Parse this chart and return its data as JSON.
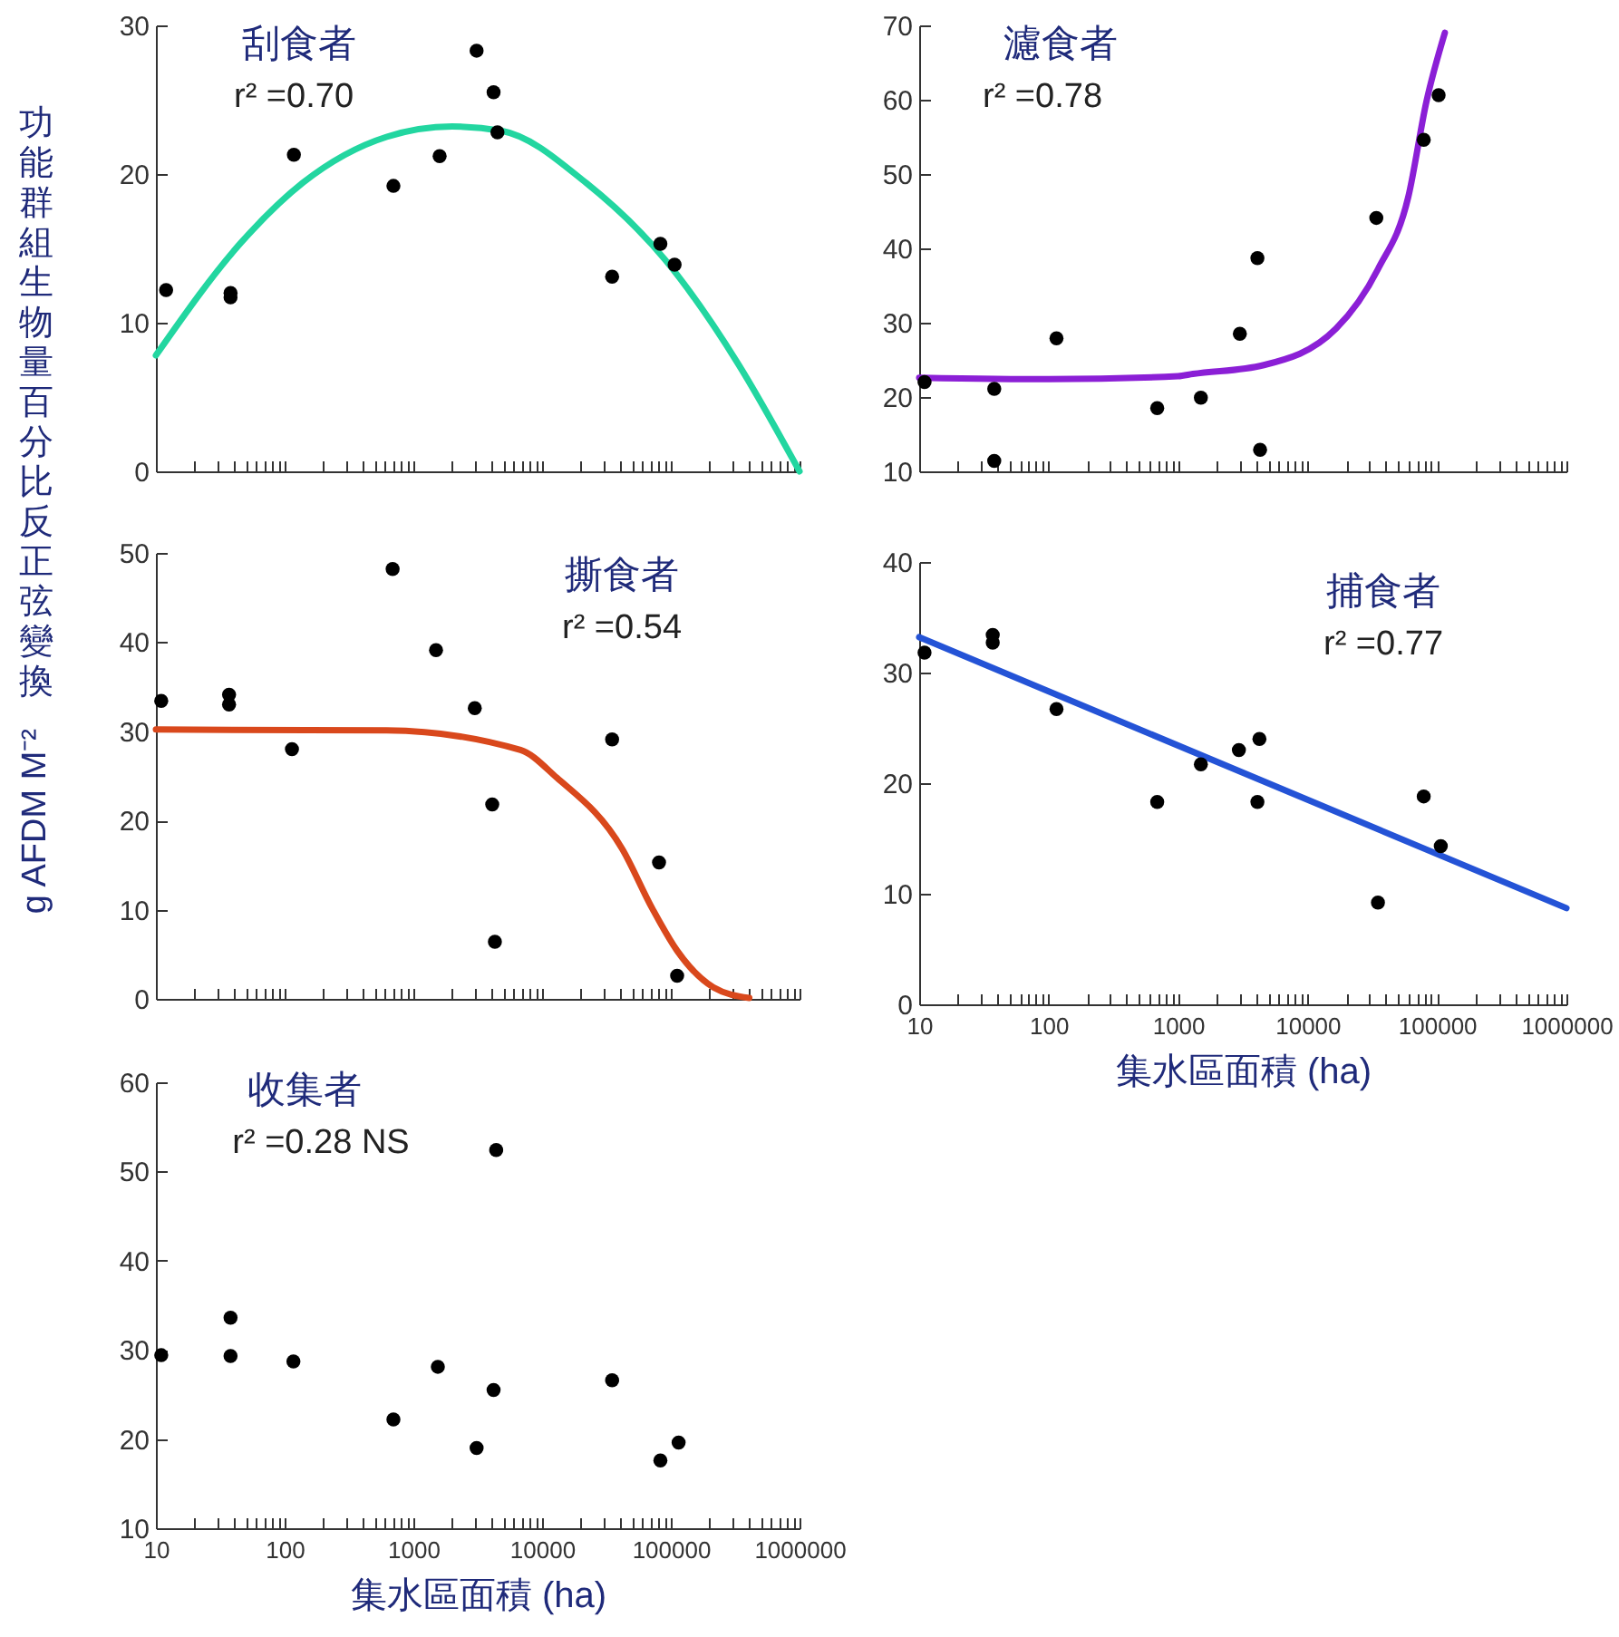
{
  "chart_data": [
    {
      "type": "scatter",
      "title": "刮食者",
      "ylabel": "功能群組生物量百分比反正弦變換 g AFDM M⁻²",
      "annotations": [
        "r² =0.70"
      ],
      "log": "x",
      "grid": false,
      "line_style": "solid",
      "tick_labels": "y",
      "xlim": [
        10,
        1000000
      ],
      "ylim": [
        0,
        30
      ],
      "yticks": [
        0,
        10,
        20,
        30
      ],
      "xticks": [
        10,
        {
          "value": 20,
          "label": null
        },
        {
          "value": 30,
          "label": null
        },
        {
          "value": 40,
          "label": null
        },
        {
          "value": 50,
          "label": null
        },
        {
          "value": 60,
          "label": null
        },
        {
          "value": 70,
          "label": null
        },
        {
          "value": 80,
          "label": null
        },
        {
          "value": 90,
          "label": null
        },
        100,
        {
          "value": 200,
          "label": null
        },
        {
          "value": 300,
          "label": null
        },
        {
          "value": 400,
          "label": null
        },
        {
          "value": 500,
          "label": null
        },
        {
          "value": 600,
          "label": null
        },
        {
          "value": 700,
          "label": null
        },
        {
          "value": 800,
          "label": null
        },
        {
          "value": 900,
          "label": null
        },
        1000,
        {
          "value": 2000,
          "label": null
        },
        {
          "value": 3000,
          "label": null
        },
        {
          "value": 4000,
          "label": null
        },
        {
          "value": 5000,
          "label": null
        },
        {
          "value": 6000,
          "label": null
        },
        {
          "value": 7000,
          "label": null
        },
        {
          "value": 8000,
          "label": null
        },
        {
          "value": 9000,
          "label": null
        },
        10000,
        {
          "value": 20000,
          "label": null
        },
        {
          "value": 30000,
          "label": null
        },
        {
          "value": 40000,
          "label": null
        },
        {
          "value": 50000,
          "label": null
        },
        {
          "value": 60000,
          "label": null
        },
        {
          "value": 70000,
          "label": null
        },
        {
          "value": 80000,
          "label": null
        },
        {
          "value": 90000,
          "label": null
        },
        100000,
        {
          "value": 200000,
          "label": null
        },
        {
          "value": 300000,
          "label": null
        },
        {
          "value": 400000,
          "label": null
        },
        {
          "value": 500000,
          "label": null
        },
        {
          "value": 600000,
          "label": null
        },
        {
          "value": 700000,
          "label": null
        },
        {
          "value": 800000,
          "label": null
        },
        {
          "value": 900000,
          "label": null
        },
        1000000
      ],
      "series": [
        {
          "type": "scatter",
          "marker": "circle",
          "color": "#000000",
          "x": [
            12,
            38,
            38,
            118,
            700,
            1600,
            3100,
            4200,
            4500,
            35000,
            83000,
            107000
          ],
          "values": [
            12.2,
            12.0,
            11.7,
            21.3,
            19.2,
            21.2,
            28.3,
            25.5,
            22.8,
            13.1,
            15.3,
            13.9
          ]
        },
        {
          "type": "line",
          "marker": "none",
          "color": "#22d6a0",
          "x": [
            10,
            46,
            138,
            620,
            2000,
            4900,
            22000,
            91000,
            330000,
            1000000
          ],
          "values": [
            7.8,
            15.4,
            19.4,
            22.5,
            23.2,
            22.9,
            19.4,
            14.2,
            7.3,
            0
          ]
        }
      ]
    },
    {
      "type": "scatter",
      "title": "濾食者",
      "annotations": [
        "r² =0.78"
      ],
      "log": "x",
      "grid": false,
      "line_style": "solid",
      "tick_labels": "y",
      "xlim": [
        10,
        1000000
      ],
      "ylim": [
        10,
        70
      ],
      "yticks": [
        10,
        20,
        30,
        40,
        50,
        60,
        70
      ],
      "xticks": [
        10,
        {
          "value": 20,
          "label": null
        },
        {
          "value": 30,
          "label": null
        },
        {
          "value": 40,
          "label": null
        },
        {
          "value": 50,
          "label": null
        },
        {
          "value": 60,
          "label": null
        },
        {
          "value": 70,
          "label": null
        },
        {
          "value": 80,
          "label": null
        },
        {
          "value": 90,
          "label": null
        },
        100,
        {
          "value": 200,
          "label": null
        },
        {
          "value": 300,
          "label": null
        },
        {
          "value": 400,
          "label": null
        },
        {
          "value": 500,
          "label": null
        },
        {
          "value": 600,
          "label": null
        },
        {
          "value": 700,
          "label": null
        },
        {
          "value": 800,
          "label": null
        },
        {
          "value": 900,
          "label": null
        },
        1000,
        {
          "value": 2000,
          "label": null
        },
        {
          "value": 3000,
          "label": null
        },
        {
          "value": 4000,
          "label": null
        },
        {
          "value": 5000,
          "label": null
        },
        {
          "value": 6000,
          "label": null
        },
        {
          "value": 7000,
          "label": null
        },
        {
          "value": 8000,
          "label": null
        },
        {
          "value": 9000,
          "label": null
        },
        10000,
        {
          "value": 20000,
          "label": null
        },
        {
          "value": 30000,
          "label": null
        },
        {
          "value": 40000,
          "label": null
        },
        {
          "value": 50000,
          "label": null
        },
        {
          "value": 60000,
          "label": null
        },
        {
          "value": 70000,
          "label": null
        },
        {
          "value": 80000,
          "label": null
        },
        {
          "value": 90000,
          "label": null
        },
        100000,
        {
          "value": 200000,
          "label": null
        },
        {
          "value": 300000,
          "label": null
        },
        {
          "value": 400000,
          "label": null
        },
        {
          "value": 500000,
          "label": null
        },
        {
          "value": 600000,
          "label": null
        },
        {
          "value": 700000,
          "label": null
        },
        {
          "value": 800000,
          "label": null
        },
        {
          "value": 900000,
          "label": null
        },
        1000000
      ],
      "series": [
        {
          "type": "scatter",
          "marker": "circle",
          "color": "#000000",
          "x": [
            11,
            38,
            38,
            115,
            690,
            1500,
            3000,
            4100,
            4300,
            34000,
            79000,
            103000
          ],
          "values": [
            22,
            21.1,
            11.4,
            27.9,
            18.5,
            19.9,
            28.5,
            38.7,
            12.9,
            44.1,
            54.6,
            60.6
          ]
        },
        {
          "type": "line",
          "marker": "none",
          "color": "#8b1fd6",
          "x": [
            10,
            100,
            1000,
            1300,
            4600,
            16600,
            35000,
            60000,
            83000,
            115000
          ],
          "values": [
            22.6,
            22.4,
            22.8,
            23.1,
            24.3,
            29.2,
            37.2,
            46.9,
            59.8,
            69
          ]
        }
      ]
    },
    {
      "type": "scatter",
      "title": "撕食者",
      "annotations": [
        "r² =0.54"
      ],
      "log": "x",
      "grid": false,
      "line_style": "solid",
      "tick_labels": "y",
      "xlim": [
        10,
        1000000
      ],
      "ylim": [
        0,
        50
      ],
      "yticks": [
        0,
        10,
        20,
        30,
        40,
        50
      ],
      "xticks": [
        10,
        {
          "value": 20,
          "label": null
        },
        {
          "value": 30,
          "label": null
        },
        {
          "value": 40,
          "label": null
        },
        {
          "value": 50,
          "label": null
        },
        {
          "value": 60,
          "label": null
        },
        {
          "value": 70,
          "label": null
        },
        {
          "value": 80,
          "label": null
        },
        {
          "value": 90,
          "label": null
        },
        100,
        {
          "value": 200,
          "label": null
        },
        {
          "value": 300,
          "label": null
        },
        {
          "value": 400,
          "label": null
        },
        {
          "value": 500,
          "label": null
        },
        {
          "value": 600,
          "label": null
        },
        {
          "value": 700,
          "label": null
        },
        {
          "value": 800,
          "label": null
        },
        {
          "value": 900,
          "label": null
        },
        1000,
        {
          "value": 2000,
          "label": null
        },
        {
          "value": 3000,
          "label": null
        },
        {
          "value": 4000,
          "label": null
        },
        {
          "value": 5000,
          "label": null
        },
        {
          "value": 6000,
          "label": null
        },
        {
          "value": 7000,
          "label": null
        },
        {
          "value": 8000,
          "label": null
        },
        {
          "value": 9000,
          "label": null
        },
        10000,
        {
          "value": 20000,
          "label": null
        },
        {
          "value": 30000,
          "label": null
        },
        {
          "value": 40000,
          "label": null
        },
        {
          "value": 50000,
          "label": null
        },
        {
          "value": 60000,
          "label": null
        },
        {
          "value": 70000,
          "label": null
        },
        {
          "value": 80000,
          "label": null
        },
        {
          "value": 90000,
          "label": null
        },
        100000,
        {
          "value": 200000,
          "label": null
        },
        {
          "value": 300000,
          "label": null
        },
        {
          "value": 400000,
          "label": null
        },
        {
          "value": 500000,
          "label": null
        },
        {
          "value": 600000,
          "label": null
        },
        {
          "value": 700000,
          "label": null
        },
        {
          "value": 800000,
          "label": null
        },
        {
          "value": 900000,
          "label": null
        },
        1000000
      ],
      "series": [
        {
          "type": "scatter",
          "marker": "circle",
          "color": "#000000",
          "x": [
            11,
            37,
            37,
            114,
            690,
            1500,
            3000,
            4100,
            4300,
            35000,
            81000,
            112000
          ],
          "values": [
            33.4,
            34.1,
            33.0,
            28.0,
            48.2,
            39.1,
            32.6,
            21.8,
            6.4,
            29.1,
            15.3,
            2.6
          ]
        },
        {
          "type": "line",
          "marker": "none",
          "color": "#d9481c",
          "x": [
            10,
            620,
            6800,
            13000,
            42000,
            72000,
            112000,
            214000,
            407000
          ],
          "values": [
            30.2,
            30.1,
            27.9,
            24.8,
            16.8,
            10.1,
            5.4,
            1.3,
            0.1
          ]
        }
      ]
    },
    {
      "type": "scatter",
      "title": "捕食者",
      "xlabel": "集水區面積 (ha)",
      "annotations": [
        "r² =0.77"
      ],
      "log": "x",
      "grid": false,
      "line_style": "solid",
      "xlim": [
        10,
        1000000
      ],
      "ylim": [
        0,
        40
      ],
      "yticks": [
        0,
        10,
        20,
        30,
        40
      ],
      "xticks": [
        10,
        {
          "value": 20,
          "label": null
        },
        {
          "value": 30,
          "label": null
        },
        {
          "value": 40,
          "label": null
        },
        {
          "value": 50,
          "label": null
        },
        {
          "value": 60,
          "label": null
        },
        {
          "value": 70,
          "label": null
        },
        {
          "value": 80,
          "label": null
        },
        {
          "value": 90,
          "label": null
        },
        100,
        {
          "value": 200,
          "label": null
        },
        {
          "value": 300,
          "label": null
        },
        {
          "value": 400,
          "label": null
        },
        {
          "value": 500,
          "label": null
        },
        {
          "value": 600,
          "label": null
        },
        {
          "value": 700,
          "label": null
        },
        {
          "value": 800,
          "label": null
        },
        {
          "value": 900,
          "label": null
        },
        1000,
        {
          "value": 2000,
          "label": null
        },
        {
          "value": 3000,
          "label": null
        },
        {
          "value": 4000,
          "label": null
        },
        {
          "value": 5000,
          "label": null
        },
        {
          "value": 6000,
          "label": null
        },
        {
          "value": 7000,
          "label": null
        },
        {
          "value": 8000,
          "label": null
        },
        {
          "value": 9000,
          "label": null
        },
        10000,
        {
          "value": 20000,
          "label": null
        },
        {
          "value": 30000,
          "label": null
        },
        {
          "value": 40000,
          "label": null
        },
        {
          "value": 50000,
          "label": null
        },
        {
          "value": 60000,
          "label": null
        },
        {
          "value": 70000,
          "label": null
        },
        {
          "value": 80000,
          "label": null
        },
        {
          "value": 90000,
          "label": null
        },
        100000,
        {
          "value": 200000,
          "label": null
        },
        {
          "value": 300000,
          "label": null
        },
        {
          "value": 400000,
          "label": null
        },
        {
          "value": 500000,
          "label": null
        },
        {
          "value": 600000,
          "label": null
        },
        {
          "value": 700000,
          "label": null
        },
        {
          "value": 800000,
          "label": null
        },
        {
          "value": 900000,
          "label": null
        },
        1000000
      ],
      "series": [
        {
          "type": "scatter",
          "marker": "circle",
          "color": "#000000",
          "x": [
            11,
            37,
            37,
            115,
            690,
            1500,
            2950,
            4250,
            4100,
            35000,
            79000,
            107000
          ],
          "values": [
            31.8,
            33.4,
            32.7,
            26.7,
            18.3,
            21.7,
            23.0,
            24.0,
            18.3,
            9.2,
            18.8,
            14.3
          ]
        },
        {
          "type": "line",
          "marker": "none",
          "color": "#2453d6",
          "x": [
            10,
            1000000
          ],
          "values": [
            33.2,
            8.7
          ]
        }
      ]
    },
    {
      "type": "scatter",
      "title": "收集者",
      "xlabel": "集水區面積 (ha)",
      "annotations": [
        "r² =0.28 NS"
      ],
      "log": "x",
      "grid": false,
      "xlim": [
        10,
        1000000
      ],
      "ylim": [
        10,
        60
      ],
      "yticks": [
        10,
        20,
        30,
        40,
        50,
        60
      ],
      "xticks": [
        10,
        {
          "value": 20,
          "label": null
        },
        {
          "value": 30,
          "label": null
        },
        {
          "value": 40,
          "label": null
        },
        {
          "value": 50,
          "label": null
        },
        {
          "value": 60,
          "label": null
        },
        {
          "value": 70,
          "label": null
        },
        {
          "value": 80,
          "label": null
        },
        {
          "value": 90,
          "label": null
        },
        100,
        {
          "value": 200,
          "label": null
        },
        {
          "value": 300,
          "label": null
        },
        {
          "value": 400,
          "label": null
        },
        {
          "value": 500,
          "label": null
        },
        {
          "value": 600,
          "label": null
        },
        {
          "value": 700,
          "label": null
        },
        {
          "value": 800,
          "label": null
        },
        {
          "value": 900,
          "label": null
        },
        1000,
        {
          "value": 2000,
          "label": null
        },
        {
          "value": 3000,
          "label": null
        },
        {
          "value": 4000,
          "label": null
        },
        {
          "value": 5000,
          "label": null
        },
        {
          "value": 6000,
          "label": null
        },
        {
          "value": 7000,
          "label": null
        },
        {
          "value": 8000,
          "label": null
        },
        {
          "value": 9000,
          "label": null
        },
        10000,
        {
          "value": 20000,
          "label": null
        },
        {
          "value": 30000,
          "label": null
        },
        {
          "value": 40000,
          "label": null
        },
        {
          "value": 50000,
          "label": null
        },
        {
          "value": 60000,
          "label": null
        },
        {
          "value": 70000,
          "label": null
        },
        {
          "value": 80000,
          "label": null
        },
        {
          "value": 90000,
          "label": null
        },
        100000,
        {
          "value": 200000,
          "label": null
        },
        {
          "value": 300000,
          "label": null
        },
        {
          "value": 400000,
          "label": null
        },
        {
          "value": 500000,
          "label": null
        },
        {
          "value": 600000,
          "label": null
        },
        {
          "value": 700000,
          "label": null
        },
        {
          "value": 800000,
          "label": null
        },
        {
          "value": 900000,
          "label": null
        },
        1000000
      ],
      "series": [
        {
          "type": "scatter",
          "marker": "circle",
          "color": "#000000",
          "x": [
            11,
            38,
            38,
            117,
            700,
            1550,
            3100,
            4200,
            4400,
            35000,
            83000,
            115000
          ],
          "values": [
            29.4,
            33.6,
            29.3,
            28.7,
            22.2,
            28.1,
            19.0,
            25.5,
            52.4,
            26.6,
            17.6,
            19.6
          ]
        }
      ]
    }
  ]
}
